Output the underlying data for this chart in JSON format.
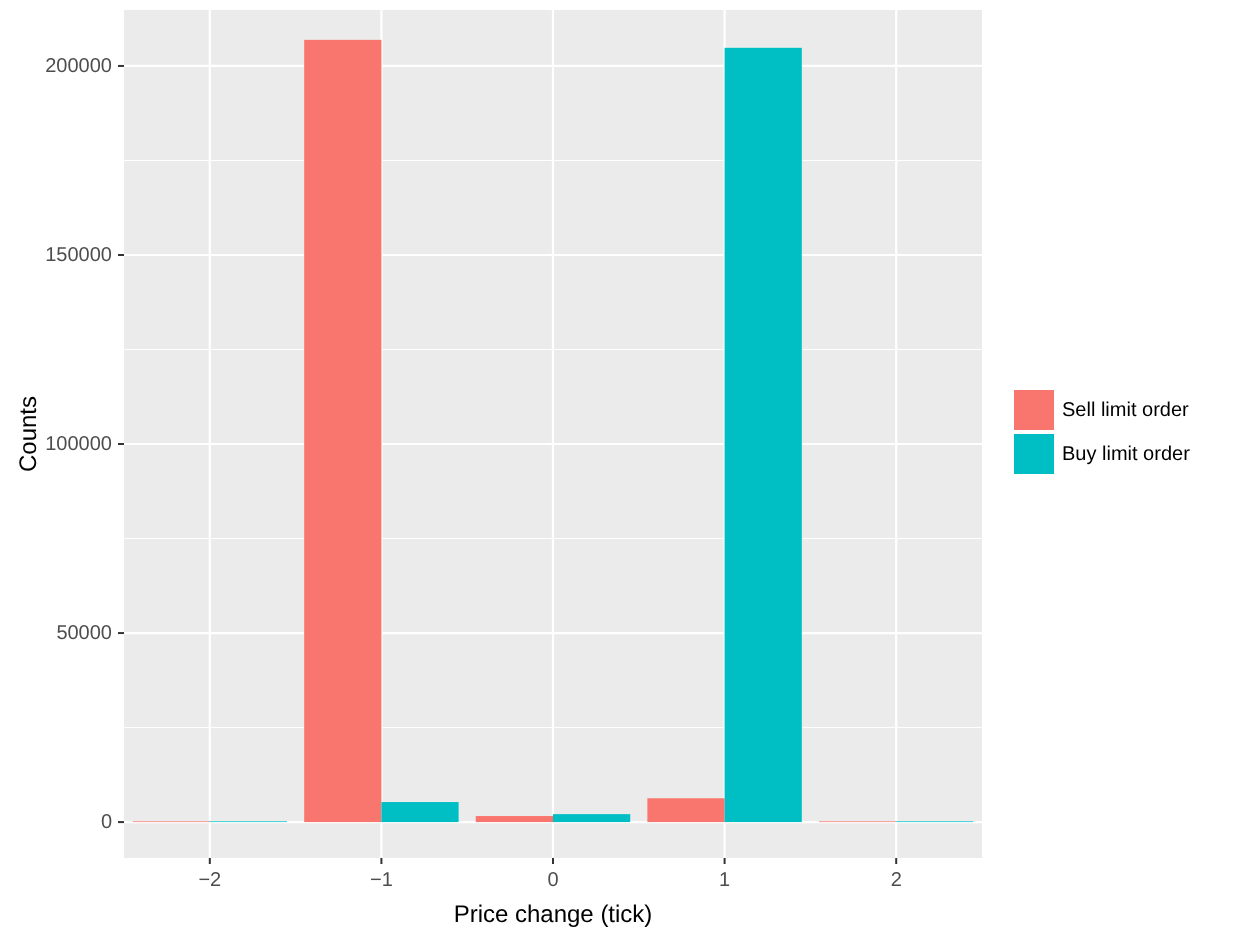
{
  "chart_data": {
    "type": "bar",
    "xlabel": "Price change (tick)",
    "ylabel": "Counts",
    "categories": [
      "−2",
      "−1",
      "0",
      "1",
      "2"
    ],
    "series": [
      {
        "name": "Sell limit order",
        "color": "#f8766d",
        "values": [
          200,
          206900,
          1600,
          6300,
          200
        ]
      },
      {
        "name": "Buy limit order",
        "color": "#00bfc4",
        "values": [
          200,
          5300,
          2100,
          204800,
          200
        ]
      }
    ],
    "ylim": [
      -9500,
      214800
    ],
    "yticks": [
      0,
      50000,
      100000,
      150000,
      200000
    ],
    "grid": true,
    "legend": "right"
  }
}
